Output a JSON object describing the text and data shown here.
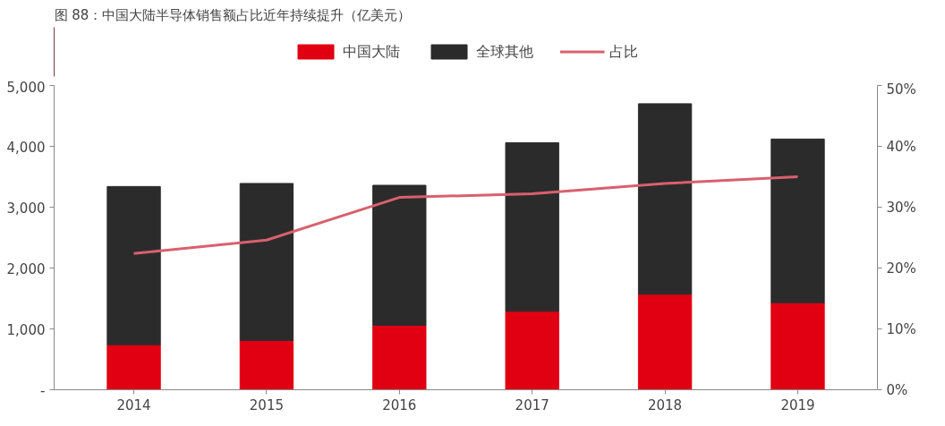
{
  "chart_data": {
    "type": "bar",
    "title": "图 88：中国大陆半导体销售额占比近年持续提升（亿美元）",
    "categories": [
      "2014",
      "2015",
      "2016",
      "2017",
      "2018",
      "2019"
    ],
    "stacked": true,
    "series": [
      {
        "name": "中国大陆",
        "color": "#e00012",
        "values": [
          740,
          810,
          1060,
          1290,
          1570,
          1430
        ]
      },
      {
        "name": "全球其他",
        "color": "#2b2b2b",
        "values": [
          2600,
          2580,
          2300,
          2770,
          3130,
          2690
        ]
      },
      {
        "name": "占比",
        "type": "line",
        "axis": "y2",
        "color": "#d9606e",
        "values": [
          22.4,
          24.6,
          31.6,
          32.2,
          33.9,
          35.0
        ]
      }
    ],
    "ylim": [
      0,
      5000
    ],
    "yticks": [
      {
        "value": 0,
        "label": "-"
      },
      {
        "value": 1000,
        "label": "1,000"
      },
      {
        "value": 2000,
        "label": "2,000"
      },
      {
        "value": 3000,
        "label": "3,000"
      },
      {
        "value": 4000,
        "label": "4,000"
      },
      {
        "value": 5000,
        "label": "5,000"
      }
    ],
    "y2lim": [
      0,
      50
    ],
    "y2ticks": [
      {
        "value": 0,
        "label": "0%"
      },
      {
        "value": 10,
        "label": "10%"
      },
      {
        "value": 20,
        "label": "20%"
      },
      {
        "value": 30,
        "label": "30%"
      },
      {
        "value": 40,
        "label": "40%"
      },
      {
        "value": 50,
        "label": "50%"
      }
    ],
    "legend": "top",
    "grid": false
  }
}
